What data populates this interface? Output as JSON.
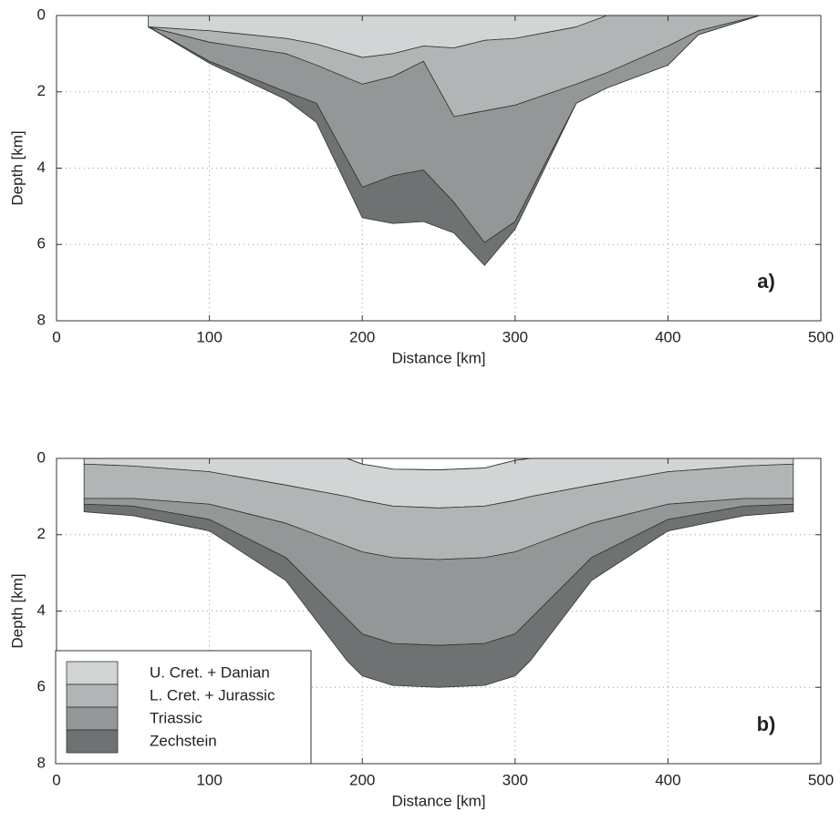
{
  "chart_data": [
    {
      "type": "area",
      "x_label": "Distance [km]",
      "y_label": "Depth [km]",
      "annotation": "a)",
      "x": [
        60,
        100,
        150,
        170,
        200,
        220,
        240,
        260,
        280,
        300,
        340,
        360,
        400,
        420,
        460
      ],
      "surface": [
        0,
        0,
        0,
        0,
        0,
        0,
        0,
        0,
        0,
        0,
        0,
        0,
        0,
        0,
        0
      ],
      "series": [
        {
          "name": "U. Cret. + Danian",
          "color": "#d2d5d5",
          "values": [
            0.3,
            0.4,
            0.6,
            0.75,
            1.1,
            1.0,
            0.8,
            0.85,
            0.65,
            0.6,
            0.3,
            0,
            0,
            0,
            0
          ]
        },
        {
          "name": "L. Cret. + Jurassic",
          "color": "#b2b5b6",
          "values": [
            0,
            0.3,
            0.4,
            0.55,
            0.7,
            0.6,
            0.4,
            1.8,
            1.85,
            1.75,
            1.5,
            1.5,
            0.8,
            0.4,
            0
          ]
        },
        {
          "name": "Triassic",
          "color": "#949798",
          "values": [
            0,
            0.5,
            1.0,
            1.0,
            2.7,
            2.6,
            2.85,
            2.25,
            3.45,
            3.05,
            0.5,
            0.4,
            0.5,
            0.1,
            0
          ]
        },
        {
          "name": "Zechstein",
          "color": "#6f7273",
          "values": [
            0,
            0.05,
            0.2,
            0.5,
            0.8,
            1.25,
            1.35,
            0.8,
            0.6,
            0.2,
            0,
            0,
            0,
            0,
            0
          ]
        }
      ],
      "xlim": [
        0,
        500
      ],
      "ylim": [
        0,
        8
      ],
      "y_inverted": true,
      "xticks": [
        0,
        100,
        200,
        300,
        400,
        500
      ],
      "yticks": [
        0,
        2,
        4,
        6,
        8
      ],
      "grid": true
    },
    {
      "type": "area",
      "x_label": "Distance [km]",
      "y_label": "Depth [km]",
      "annotation": "b)",
      "x": [
        18,
        50,
        100,
        150,
        190,
        200,
        220,
        250,
        280,
        300,
        310,
        350,
        400,
        450,
        482
      ],
      "surface": [
        0,
        0,
        0,
        0,
        0,
        0.15,
        0.28,
        0.3,
        0.25,
        0.05,
        0,
        0,
        0,
        0,
        0
      ],
      "series": [
        {
          "name": "U. Cret. + Danian",
          "color": "#d2d5d5",
          "values": [
            0.15,
            0.2,
            0.35,
            0.7,
            1.0,
            0.95,
            0.97,
            1.0,
            1.0,
            1.05,
            1.0,
            0.7,
            0.35,
            0.2,
            0.15
          ]
        },
        {
          "name": "L. Cret. + Jurassic",
          "color": "#b2b5b6",
          "values": [
            0.9,
            0.85,
            0.85,
            1.0,
            1.3,
            1.35,
            1.35,
            1.35,
            1.35,
            1.35,
            1.3,
            1.0,
            0.85,
            0.85,
            0.9
          ]
        },
        {
          "name": "Triassic",
          "color": "#949798",
          "values": [
            0.15,
            0.2,
            0.4,
            0.9,
            1.9,
            2.15,
            2.25,
            2.25,
            2.25,
            2.15,
            1.9,
            0.9,
            0.4,
            0.2,
            0.15
          ]
        },
        {
          "name": "Zechstein",
          "color": "#6f7273",
          "values": [
            0.2,
            0.25,
            0.3,
            0.6,
            1.1,
            1.1,
            1.1,
            1.1,
            1.1,
            1.1,
            1.1,
            0.6,
            0.3,
            0.25,
            0.2
          ]
        }
      ],
      "xlim": [
        0,
        500
      ],
      "ylim": [
        0,
        8
      ],
      "y_inverted": true,
      "xticks": [
        0,
        100,
        200,
        300,
        400,
        500
      ],
      "yticks": [
        0,
        2,
        4,
        6,
        8
      ],
      "grid": true,
      "legend": "lower left"
    }
  ]
}
